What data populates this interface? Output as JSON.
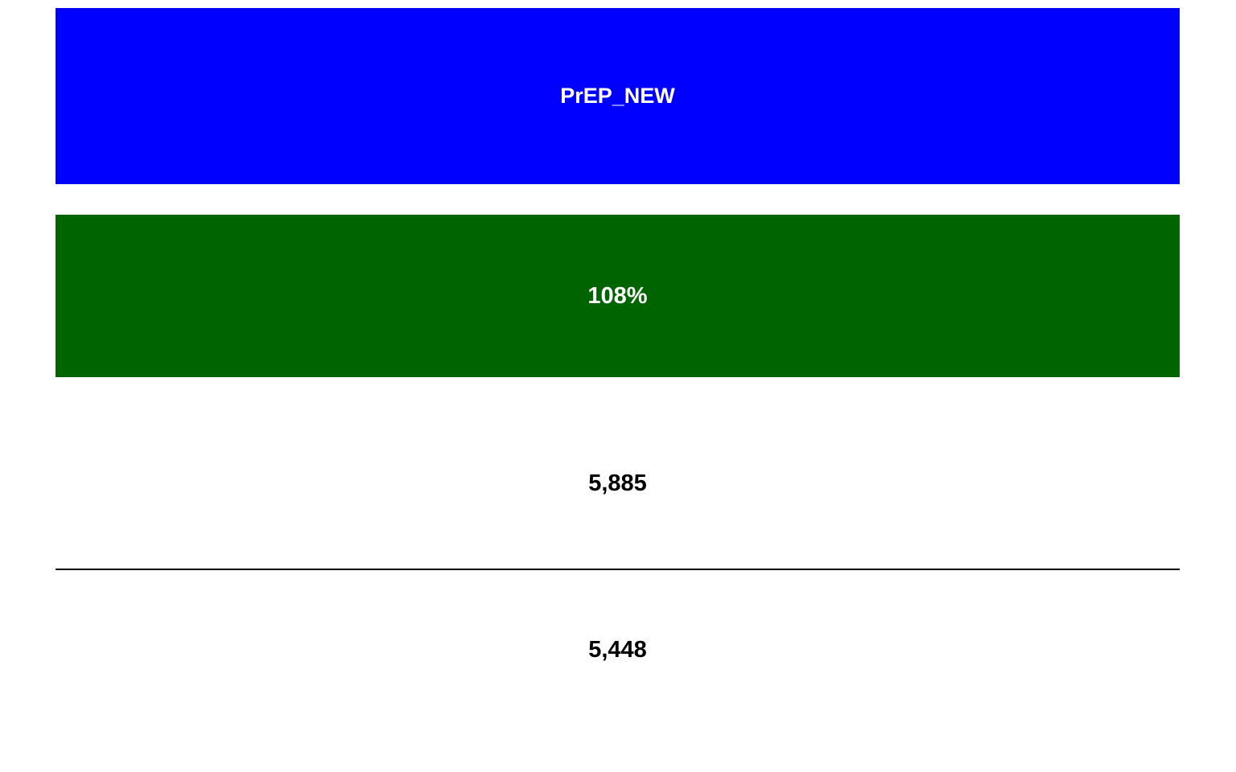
{
  "indicator": {
    "title": "PrEP_NEW",
    "title_bg_color": "#0000ff"
  },
  "achievement": {
    "percent": "108%",
    "bg_color": "#006400"
  },
  "result": {
    "value": "5,885"
  },
  "target": {
    "value": "5,448"
  }
}
